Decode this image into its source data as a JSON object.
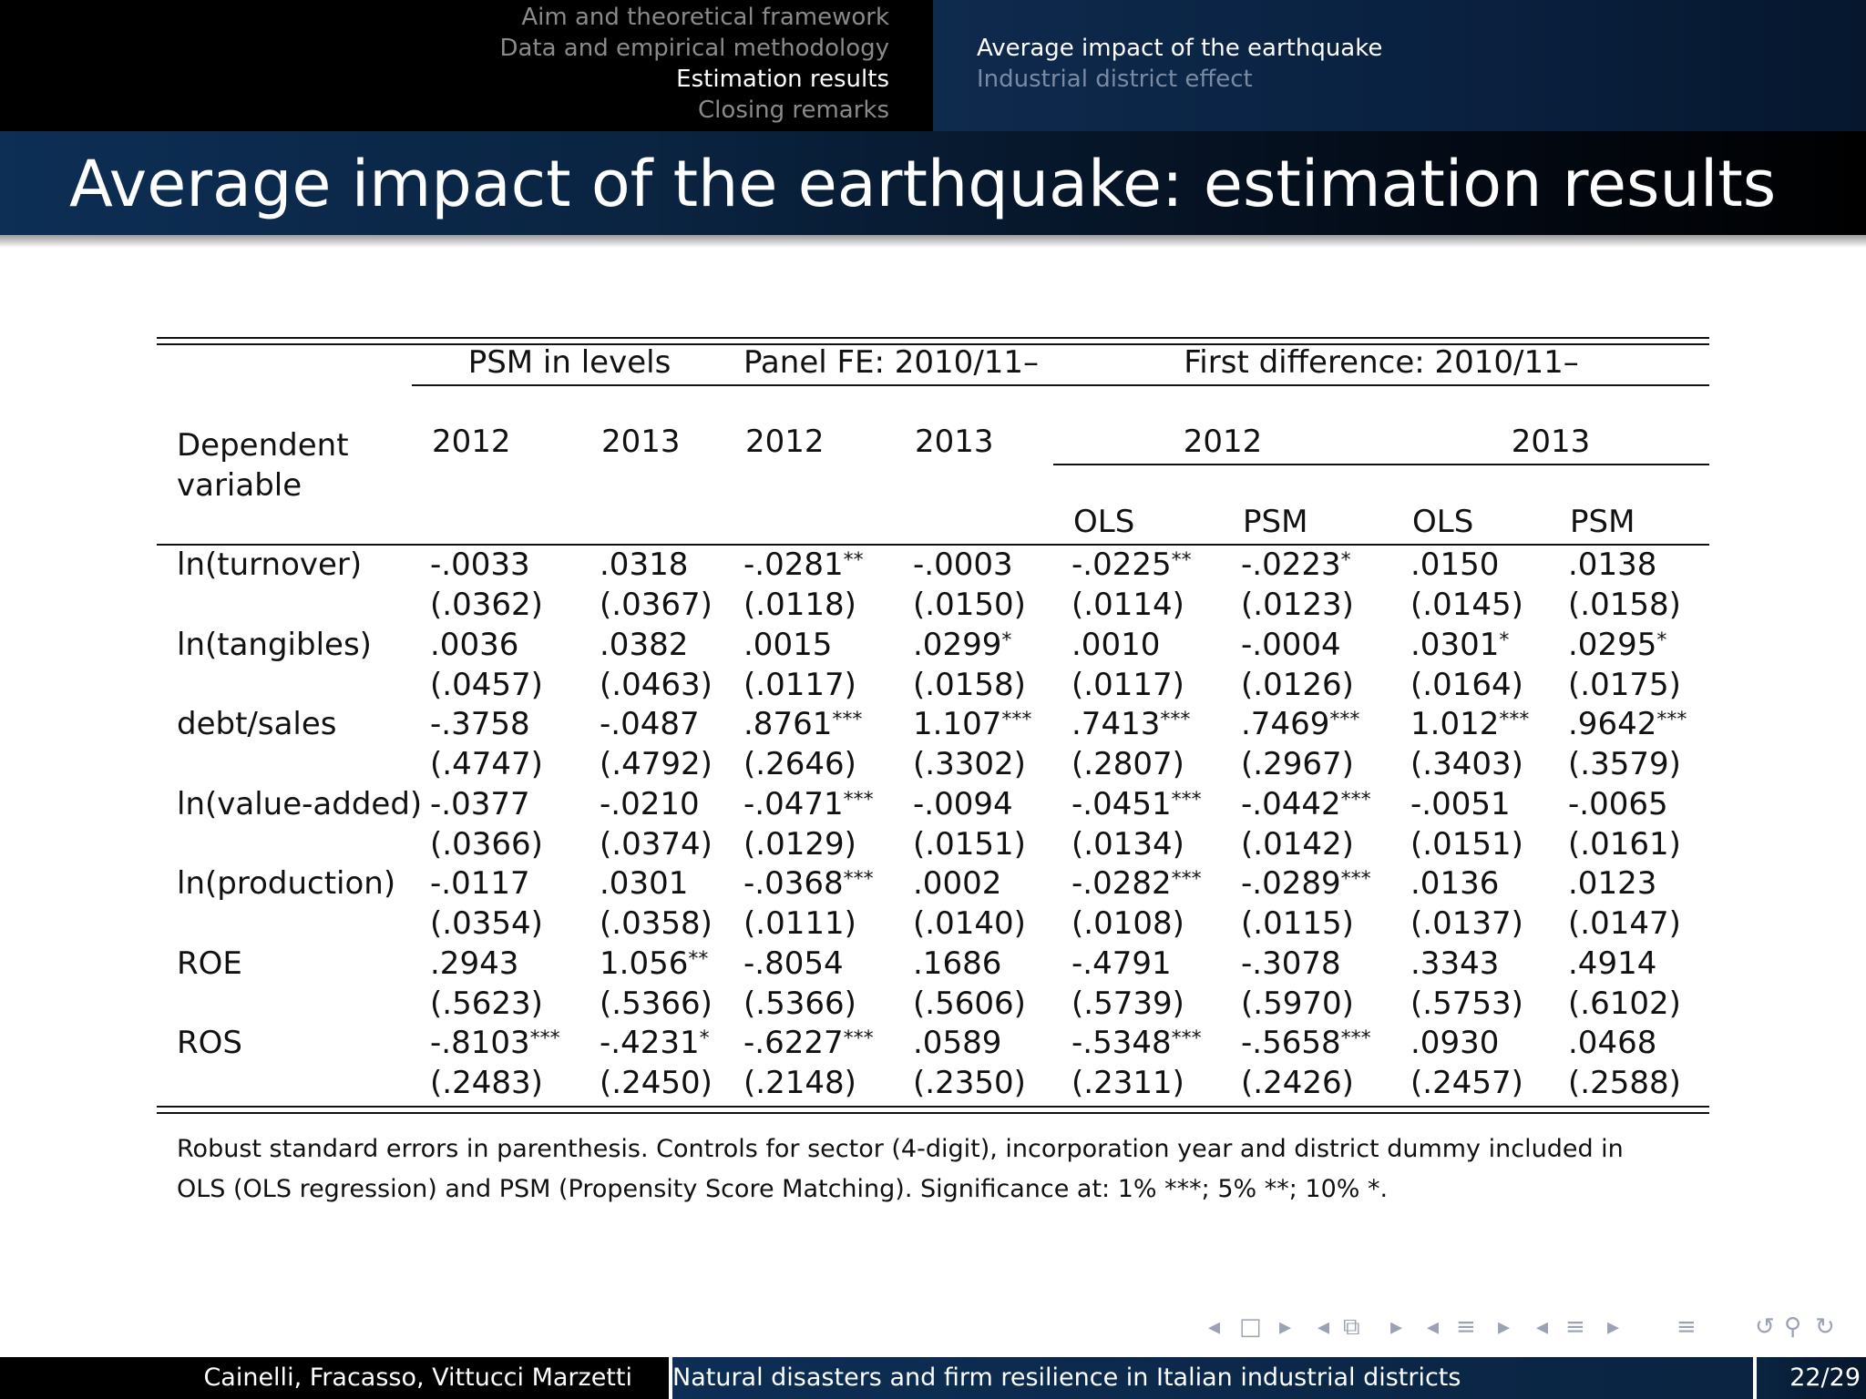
{
  "header": {
    "sections": [
      "Aim and theoretical framework",
      "Data and empirical methodology",
      "Estimation results",
      "Closing remarks"
    ],
    "active_section": 2,
    "subsections": [
      "Average impact of the earthquake",
      "Industrial district effect"
    ],
    "active_subsection": 0
  },
  "frame_title": "Average impact of the earthquake: estimation results",
  "table": {
    "group_headers": [
      "PSM in levels",
      "Panel FE: 2010/11–",
      "First difference: 2010/11–"
    ],
    "dep_var_label_line1": "Dependent",
    "dep_var_label_line2": "variable",
    "year_headers": [
      "2012",
      "2013",
      "2012",
      "2013",
      "2012",
      "2013"
    ],
    "method_headers": [
      "OLS",
      "PSM",
      "OLS",
      "PSM"
    ],
    "rows": [
      {
        "label": "ln(turnover)",
        "coef": [
          [
            "-.0033",
            ""
          ],
          [
            ".0318",
            ""
          ],
          [
            "-.0281",
            "**"
          ],
          [
            "-.0003",
            ""
          ],
          [
            "-.0225",
            "**"
          ],
          [
            "-.0223",
            "*"
          ],
          [
            ".0150",
            ""
          ],
          [
            ".0138",
            ""
          ]
        ],
        "se": [
          "(.0362)",
          "(.0367)",
          "(.0118)",
          "(.0150)",
          "(.0114)",
          "(.0123)",
          "(.0145)",
          "(.0158)"
        ]
      },
      {
        "label": "ln(tangibles)",
        "coef": [
          [
            ".0036",
            ""
          ],
          [
            ".0382",
            ""
          ],
          [
            ".0015",
            ""
          ],
          [
            ".0299",
            "*"
          ],
          [
            ".0010",
            ""
          ],
          [
            "-.0004",
            ""
          ],
          [
            ".0301",
            "*"
          ],
          [
            ".0295",
            "*"
          ]
        ],
        "se": [
          "(.0457)",
          "(.0463)",
          "(.0117)",
          "(.0158)",
          "(.0117)",
          "(.0126)",
          "(.0164)",
          "(.0175)"
        ]
      },
      {
        "label": "debt/sales",
        "coef": [
          [
            "-.3758",
            ""
          ],
          [
            "-.0487",
            ""
          ],
          [
            ".8761",
            "***"
          ],
          [
            "1.107",
            "***"
          ],
          [
            ".7413",
            "***"
          ],
          [
            ".7469",
            "***"
          ],
          [
            "1.012",
            "***"
          ],
          [
            ".9642",
            "***"
          ]
        ],
        "se": [
          "(.4747)",
          "(.4792)",
          "(.2646)",
          "(.3302)",
          "(.2807)",
          "(.2967)",
          "(.3403)",
          "(.3579)"
        ]
      },
      {
        "label": "ln(value-added)",
        "coef": [
          [
            "-.0377",
            ""
          ],
          [
            "-.0210",
            ""
          ],
          [
            "-.0471",
            "***"
          ],
          [
            "-.0094",
            ""
          ],
          [
            "-.0451",
            "***"
          ],
          [
            "-.0442",
            "***"
          ],
          [
            "-.0051",
            ""
          ],
          [
            "-.0065",
            ""
          ]
        ],
        "se": [
          "(.0366)",
          "(.0374)",
          "(.0129)",
          "(.0151)",
          "(.0134)",
          "(.0142)",
          "(.0151)",
          "(.0161)"
        ]
      },
      {
        "label": "ln(production)",
        "coef": [
          [
            "-.0117",
            ""
          ],
          [
            ".0301",
            ""
          ],
          [
            "-.0368",
            "***"
          ],
          [
            ".0002",
            ""
          ],
          [
            "-.0282",
            "***"
          ],
          [
            "-.0289",
            "***"
          ],
          [
            ".0136",
            ""
          ],
          [
            ".0123",
            ""
          ]
        ],
        "se": [
          "(.0354)",
          "(.0358)",
          "(.0111)",
          "(.0140)",
          "(.0108)",
          "(.0115)",
          "(.0137)",
          "(.0147)"
        ]
      },
      {
        "label": "ROE",
        "coef": [
          [
            ".2943",
            ""
          ],
          [
            "1.056",
            "**"
          ],
          [
            "-.8054",
            ""
          ],
          [
            ".1686",
            ""
          ],
          [
            "-.4791",
            ""
          ],
          [
            "-.3078",
            ""
          ],
          [
            ".3343",
            ""
          ],
          [
            ".4914",
            ""
          ]
        ],
        "se": [
          "(.5623)",
          "(.5366)",
          "(.5366)",
          "(.5606)",
          "(.5739)",
          "(.5970)",
          "(.5753)",
          "(.6102)"
        ]
      },
      {
        "label": "ROS",
        "coef": [
          [
            "-.8103",
            "***"
          ],
          [
            "-.4231",
            "*"
          ],
          [
            "-.6227",
            "***"
          ],
          [
            ".0589",
            ""
          ],
          [
            "-.5348",
            "***"
          ],
          [
            "-.5658",
            "***"
          ],
          [
            ".0930",
            ""
          ],
          [
            ".0468",
            ""
          ]
        ],
        "se": [
          "(.2483)",
          "(.2450)",
          "(.2148)",
          "(.2350)",
          "(.2311)",
          "(.2426)",
          "(.2457)",
          "(.2588)"
        ]
      }
    ]
  },
  "note_line1": "Robust standard errors in parenthesis.  Controls for sector (4-digit), incorporation year and district dummy included in",
  "note_line2": "OLS (OLS regression) and PSM (Propensity Score Matching). Significance at: 1% ***; 5% **; 10% *.",
  "footer": {
    "authors": "Cainelli, Fracasso, Vittucci Marzetti",
    "talk_title": "Natural disasters and firm resilience in Italian industrial districts",
    "page": "22/29"
  },
  "nav_icons": [
    "prev-frame-icon",
    "frame-icon",
    "next-frame-icon",
    "prev-subsection-icon",
    "subsection-icon",
    "next-subsection-icon",
    "prev-section-icon",
    "section-icon",
    "next-section-icon",
    "prev-part-icon",
    "part-icon",
    "next-part-icon",
    "appendix-icon",
    "undo-icon",
    "search-icon",
    "redo-icon"
  ]
}
